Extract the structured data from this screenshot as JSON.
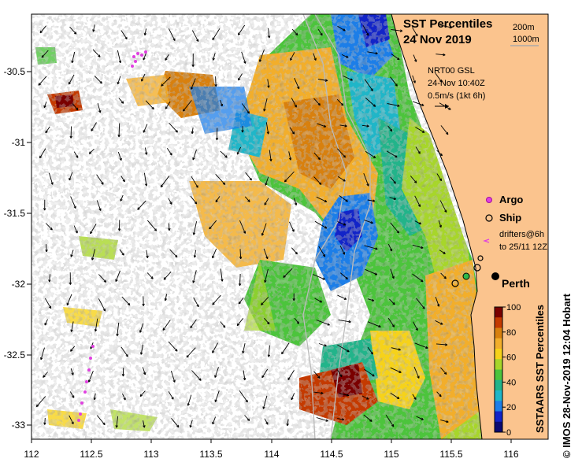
{
  "title": {
    "line1": "SST Percentiles",
    "line2": "24 Nov 2019"
  },
  "isobaths": {
    "a": "200m",
    "b": "1000m"
  },
  "currents": {
    "source": "NRT00 GSL",
    "time": "24-Nov 10:40Z",
    "scale": "0.5m/s (1kt 6h)"
  },
  "legend": {
    "argo": "Argo",
    "ship": "Ship",
    "drifters_line1": "drifters@6h",
    "drifters_line2": "to 25/11 12Z"
  },
  "city": "Perth",
  "colorbar": {
    "title": "SSTAARS SST Percentiles",
    "ticks": [
      "100",
      "80",
      "60",
      "40",
      "20",
      "0"
    ],
    "colors": [
      "#7a0000",
      "#c43a00",
      "#d8800e",
      "#f2ae2b",
      "#f6d21a",
      "#a7d62a",
      "#4cc43c",
      "#22b48a",
      "#1fb6c8",
      "#1c7ee8",
      "#1224c8",
      "#0a0a72"
    ]
  },
  "axes": {
    "x_ticks": [
      "112",
      "112.5",
      "113",
      "113.5",
      "114",
      "114.5",
      "115",
      "115.5",
      "116"
    ],
    "y_ticks": [
      "-30.5",
      "-31",
      "-31.5",
      "-32",
      "-32.5",
      "-33"
    ]
  },
  "colors": {
    "land": "#fbc48e",
    "ocean": "#ffffff",
    "argo": "#e040e0"
  },
  "credit": "© IMOS 28-Nov-2019 12:04 Hobart"
}
